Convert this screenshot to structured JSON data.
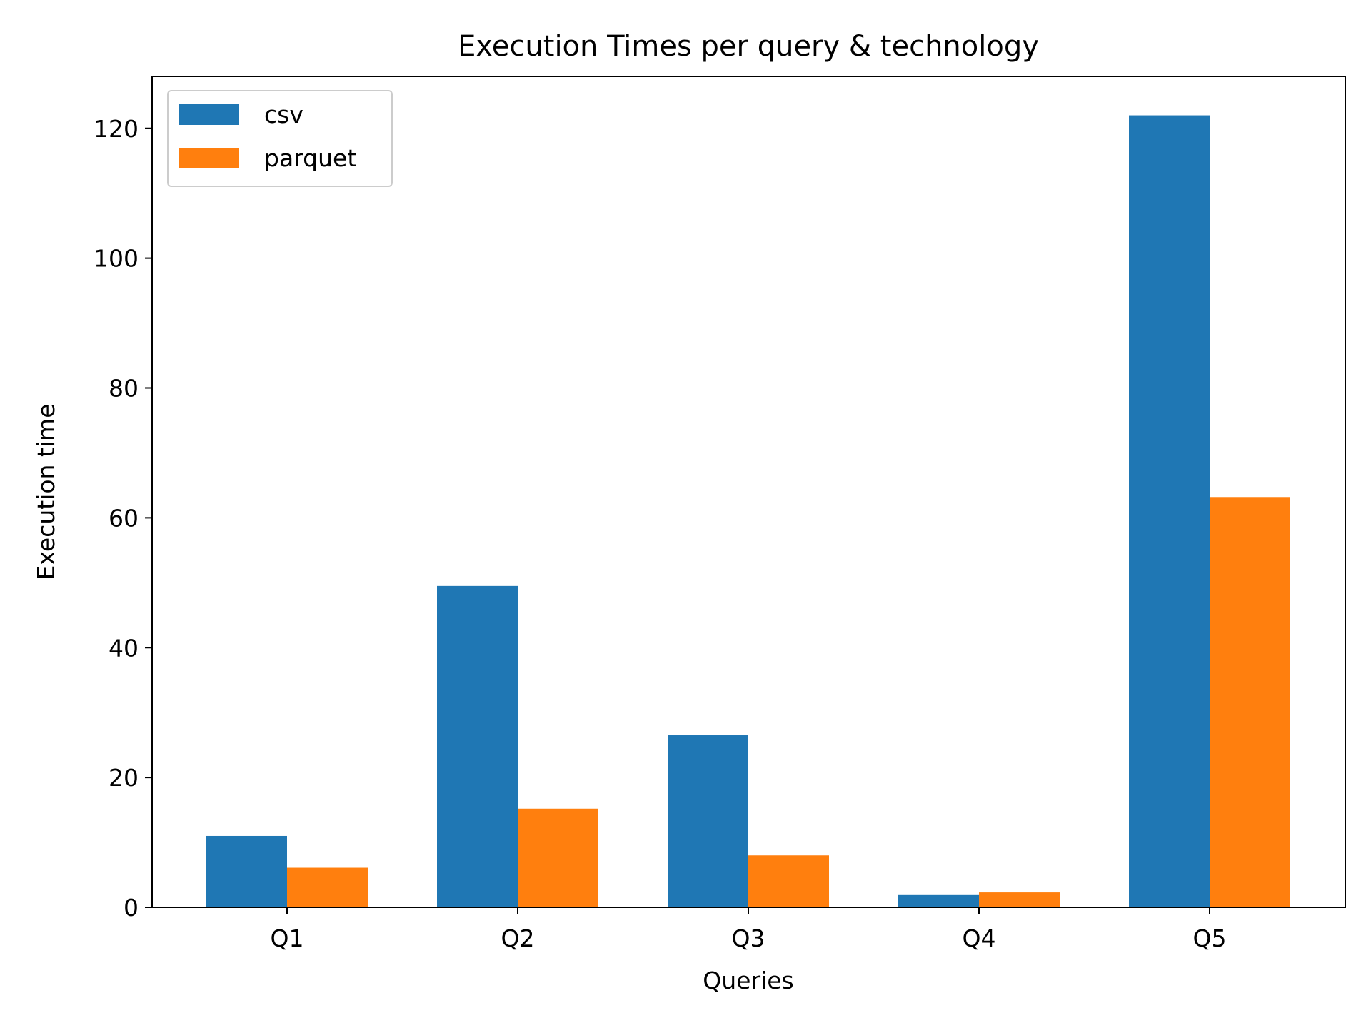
{
  "chart_data": {
    "type": "bar",
    "title": "Execution Times per query & technology",
    "xlabel": "Queries",
    "ylabel": "Execution time",
    "categories": [
      "Q1",
      "Q2",
      "Q3",
      "Q4",
      "Q5"
    ],
    "series": [
      {
        "name": "csv",
        "color": "#1f77b4",
        "values": [
          11.0,
          49.5,
          26.5,
          2.0,
          122.0
        ]
      },
      {
        "name": "parquet",
        "color": "#ff7f0e",
        "values": [
          6.1,
          15.2,
          8.0,
          2.3,
          63.2
        ]
      }
    ],
    "ylim": [
      0,
      128
    ],
    "yticks": [
      0,
      20,
      40,
      60,
      80,
      100,
      120
    ],
    "grid": false,
    "legend_position": "upper-left"
  }
}
